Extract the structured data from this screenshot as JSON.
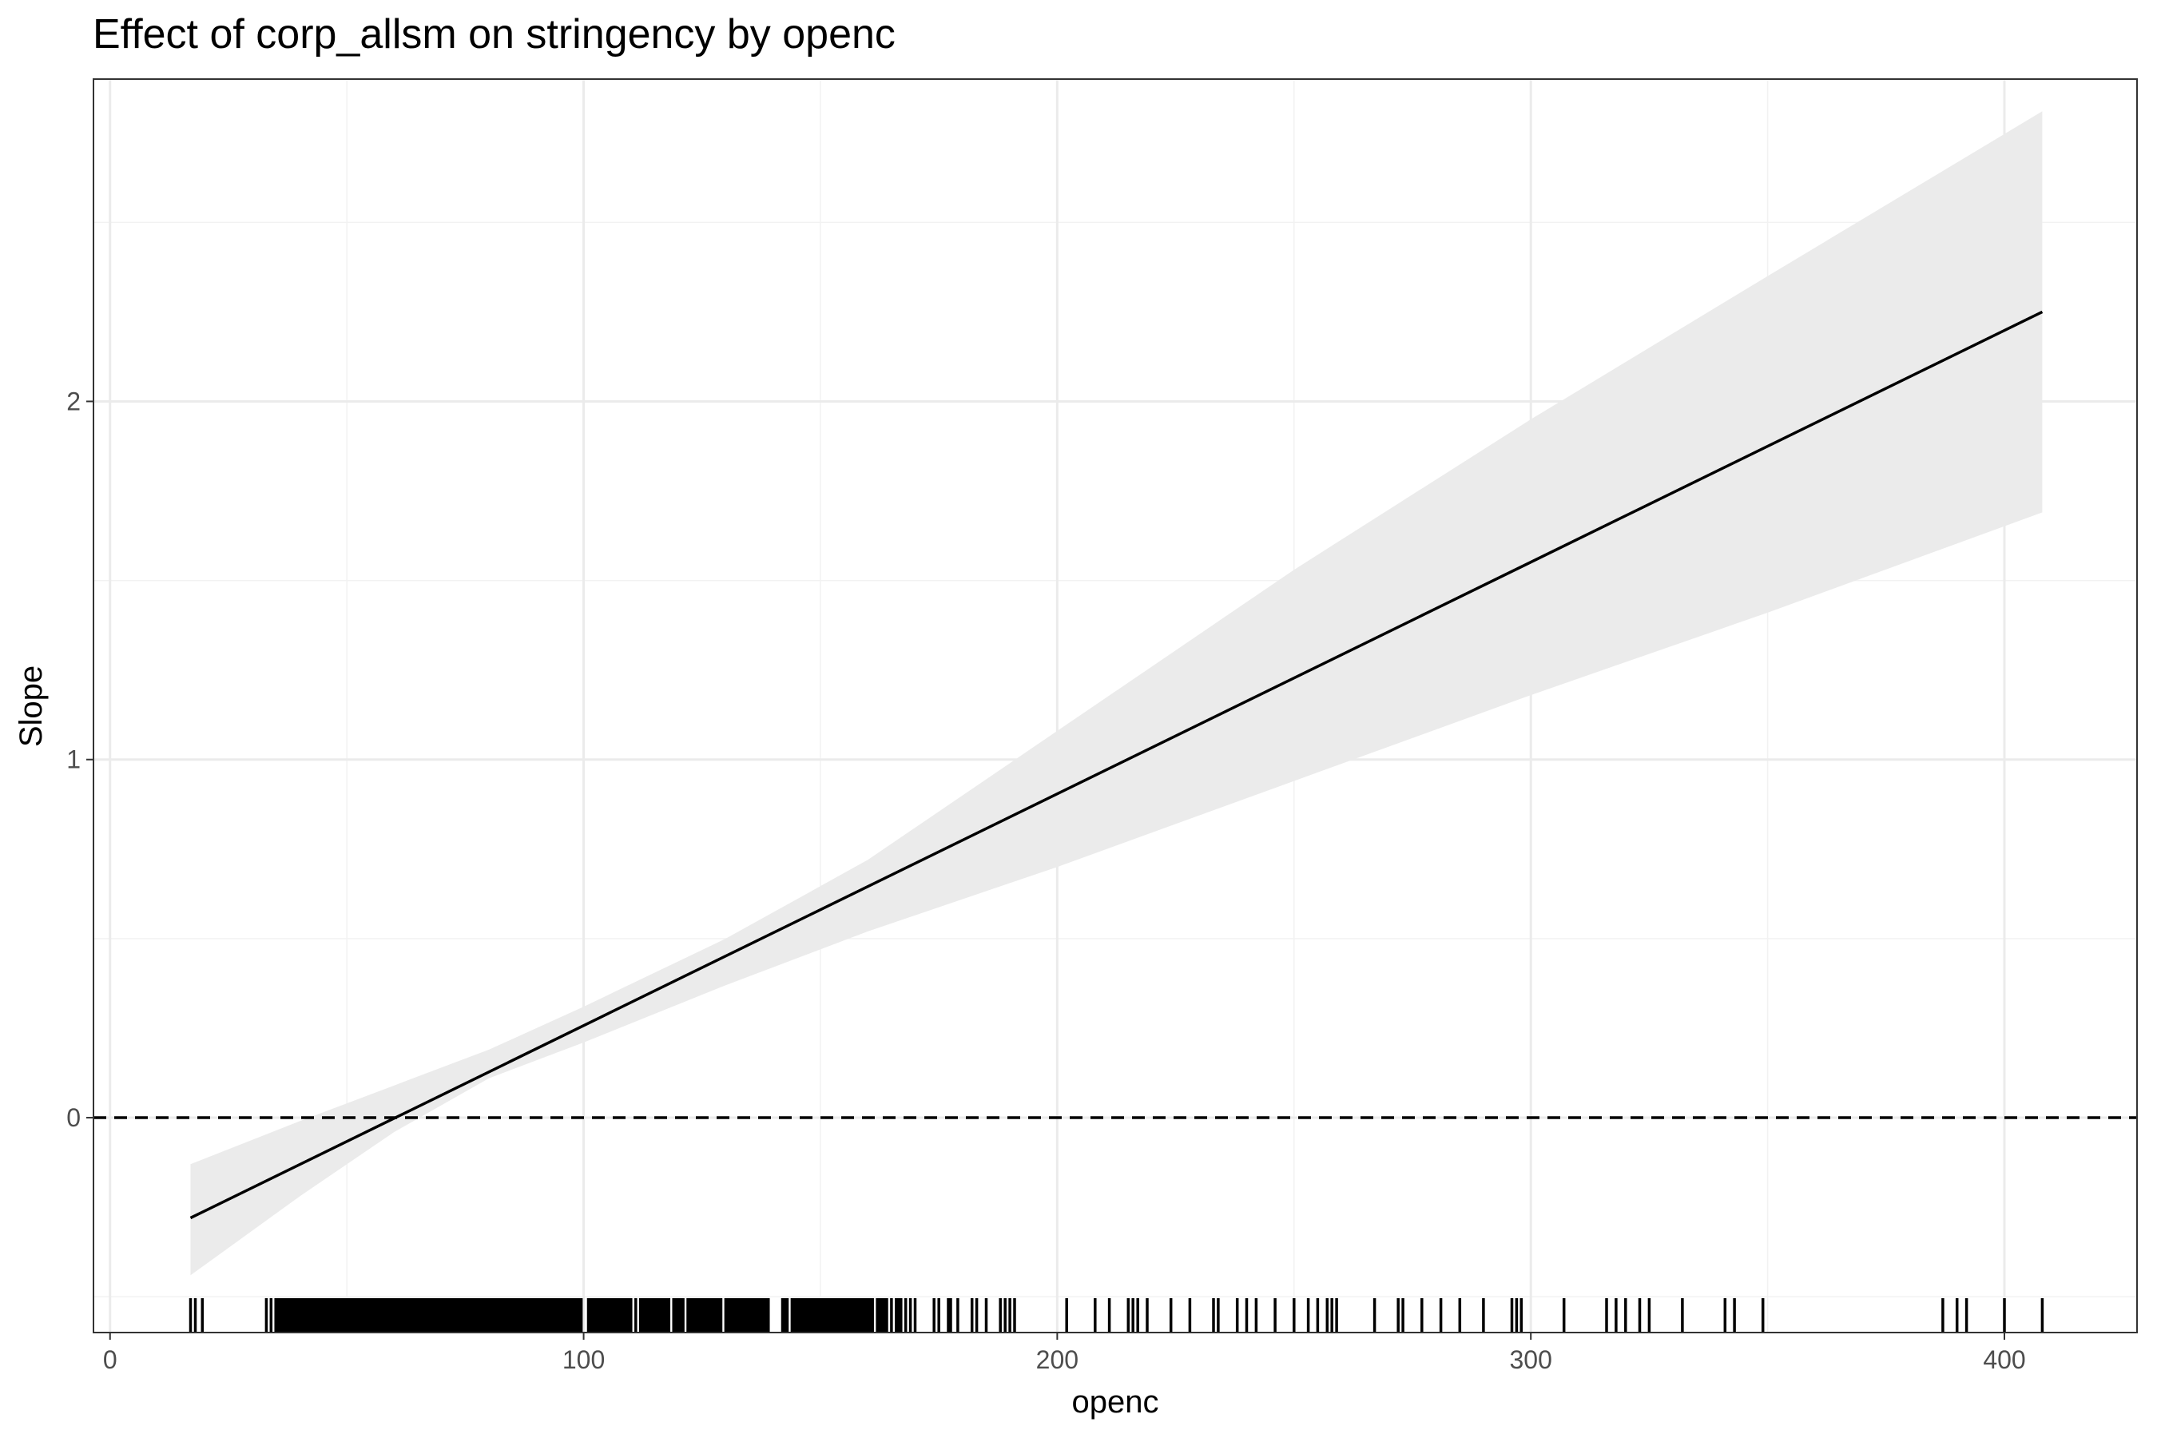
{
  "chart_data": {
    "type": "line",
    "title": "Effect of corp_allsm on stringency by openc",
    "xlabel": "openc",
    "ylabel": "Slope",
    "xlim": [
      -3.5,
      428
    ],
    "ylim": [
      -0.6,
      2.9
    ],
    "x_ticks": [
      0,
      100,
      200,
      300,
      400
    ],
    "y_ticks": [
      0,
      1,
      2
    ],
    "x_minor": [
      50,
      150,
      250,
      350
    ],
    "y_minor": [
      -0.5,
      0.5,
      1.5,
      2.5
    ],
    "grid": true,
    "reference_line": {
      "y": 0,
      "style": "dashed"
    },
    "series": [
      {
        "x": [
          17,
          408
        ],
        "y": [
          -0.28,
          2.25
        ]
      }
    ],
    "confidence_band": {
      "x": [
        17,
        40,
        60,
        80,
        100,
        130,
        160,
        200,
        250,
        300,
        350,
        408
      ],
      "lower": [
        -0.44,
        -0.22,
        -0.04,
        0.11,
        0.21,
        0.37,
        0.52,
        0.7,
        0.94,
        1.18,
        1.41,
        1.69
      ],
      "upper": [
        -0.13,
        -0.01,
        0.09,
        0.19,
        0.31,
        0.5,
        0.72,
        1.08,
        1.53,
        1.95,
        2.35,
        2.81
      ]
    },
    "rug": [
      17,
      18,
      19.5,
      33,
      34,
      35,
      35.5,
      36,
      36.5,
      37,
      37.5,
      38,
      38.5,
      39,
      39.5,
      40,
      40.5,
      41,
      41.5,
      42,
      42.5,
      43,
      43.5,
      44,
      44.5,
      45,
      45.5,
      46,
      46.5,
      47,
      47.5,
      48,
      48.5,
      49,
      49.5,
      50,
      50.5,
      51,
      51.5,
      52,
      52.5,
      53,
      53.5,
      54,
      54.5,
      55,
      55.5,
      56,
      56.5,
      57,
      57.5,
      58,
      58.5,
      59,
      59.5,
      60,
      60.5,
      61,
      61.5,
      62,
      62.5,
      63,
      63.5,
      64,
      64.5,
      65,
      65.5,
      66,
      66.5,
      67,
      67.5,
      68,
      68.5,
      69,
      69.5,
      70,
      70.5,
      71,
      71.5,
      72,
      72.5,
      73,
      73.5,
      74,
      74.5,
      75,
      75.5,
      76,
      76.5,
      77,
      77.5,
      78,
      78.5,
      79,
      79.5,
      80,
      80.5,
      81,
      81.5,
      82,
      82.5,
      83,
      83.5,
      84,
      84.5,
      85,
      85.5,
      86,
      86.5,
      87,
      87.5,
      88,
      88.5,
      89,
      89.5,
      90,
      90.5,
      91,
      91.5,
      92,
      92.5,
      93,
      93.5,
      94,
      94.5,
      95,
      95.5,
      96,
      96.5,
      97,
      97.5,
      98,
      98.5,
      99,
      99.5,
      101,
      101.5,
      102,
      102.5,
      103,
      103.5,
      104,
      104.5,
      105,
      105.5,
      106,
      106.5,
      107,
      107.5,
      108,
      108.5,
      109,
      109.5,
      110,
      111,
      112,
      112.5,
      113,
      113.5,
      114,
      114.5,
      115,
      115.5,
      116,
      116.5,
      117,
      117.5,
      118,
      119,
      119.5,
      120,
      120.5,
      121,
      122,
      122.5,
      123,
      123.5,
      124,
      124.5,
      125,
      125.5,
      126,
      126.5,
      127,
      127.5,
      128,
      128.5,
      129,
      130,
      130.5,
      131,
      131.5,
      132,
      132.5,
      133,
      133.5,
      134,
      134.5,
      135,
      135.5,
      136,
      136.5,
      137,
      137.5,
      138,
      138.5,
      139,
      142,
      142.5,
      143,
      144,
      144.5,
      145,
      145.5,
      146,
      146.5,
      147,
      147.5,
      148,
      148.5,
      149,
      149.5,
      150,
      150.5,
      151,
      151.5,
      152,
      152.5,
      153,
      153.5,
      154,
      154.5,
      155,
      155.5,
      156,
      156.5,
      157,
      157.5,
      158,
      158.5,
      159,
      159.5,
      160,
      160.5,
      161,
      162,
      162.5,
      163,
      163.5,
      164,
      165,
      166,
      166.5,
      167,
      168,
      169,
      170,
      174,
      175,
      177,
      177.5,
      179,
      182,
      183,
      185,
      188,
      189,
      190,
      191,
      202,
      208,
      211,
      215,
      216,
      217,
      219,
      224,
      228,
      233,
      234,
      238,
      240,
      242,
      246,
      250,
      253,
      255,
      257,
      258,
      259,
      267,
      272,
      273,
      277,
      281,
      285,
      290,
      296,
      297,
      298,
      307,
      316,
      318,
      320,
      323,
      325,
      332,
      341,
      343,
      349,
      387,
      390,
      392,
      400,
      408
    ]
  }
}
